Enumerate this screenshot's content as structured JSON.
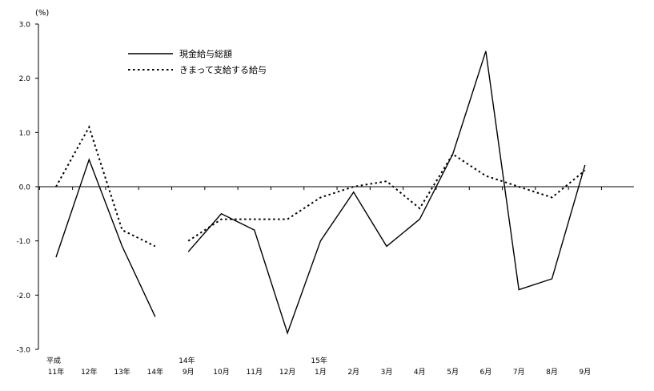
{
  "chart_data": {
    "type": "line",
    "ylabel": "(%)",
    "ylim": [
      -3.0,
      3.0
    ],
    "yticks": [
      "3.0",
      "2.0",
      "1.0",
      "0.0",
      "-1.0",
      "-2.0",
      "-3.0"
    ],
    "ytick_values": [
      3,
      2,
      1,
      0,
      -1,
      -2,
      -3
    ],
    "legend_position": "top-left",
    "grid": false,
    "categories": [
      {
        "top": "平成",
        "bottom": "11年"
      },
      {
        "top": "",
        "bottom": "12年"
      },
      {
        "top": "",
        "bottom": "13年"
      },
      {
        "top": "",
        "bottom": "14年"
      },
      {
        "top": "14年",
        "bottom": "9月"
      },
      {
        "top": "",
        "bottom": "10月"
      },
      {
        "top": "",
        "bottom": "11月"
      },
      {
        "top": "",
        "bottom": "12月"
      },
      {
        "top": "15年",
        "bottom": "1月"
      },
      {
        "top": "",
        "bottom": "2月"
      },
      {
        "top": "",
        "bottom": "3月"
      },
      {
        "top": "",
        "bottom": "4月"
      },
      {
        "top": "",
        "bottom": "5月"
      },
      {
        "top": "",
        "bottom": "6月"
      },
      {
        "top": "",
        "bottom": "7月"
      },
      {
        "top": "",
        "bottom": "8月"
      },
      {
        "top": "",
        "bottom": "9月"
      }
    ],
    "series": [
      {
        "name": "現金給与総額",
        "style": "solid",
        "segments": [
          {
            "start": 0,
            "values": [
              -1.3,
              0.5,
              -1.1,
              -2.4
            ]
          },
          {
            "start": 4,
            "values": [
              -1.2,
              -0.5,
              -0.8,
              -2.7,
              -1.0,
              -0.1,
              -1.1,
              -0.6,
              0.6,
              2.5,
              -1.9,
              -1.7,
              0.4
            ]
          }
        ]
      },
      {
        "name": "きまって支給する給与",
        "style": "dotted",
        "segments": [
          {
            "start": 0,
            "values": [
              0.0,
              1.1,
              -0.8,
              -1.1
            ]
          },
          {
            "start": 4,
            "values": [
              -1.0,
              -0.6,
              -0.6,
              -0.6,
              -0.2,
              0.0,
              0.1,
              -0.4,
              0.6,
              0.2,
              0.0,
              -0.2,
              0.3
            ]
          }
        ]
      }
    ]
  }
}
